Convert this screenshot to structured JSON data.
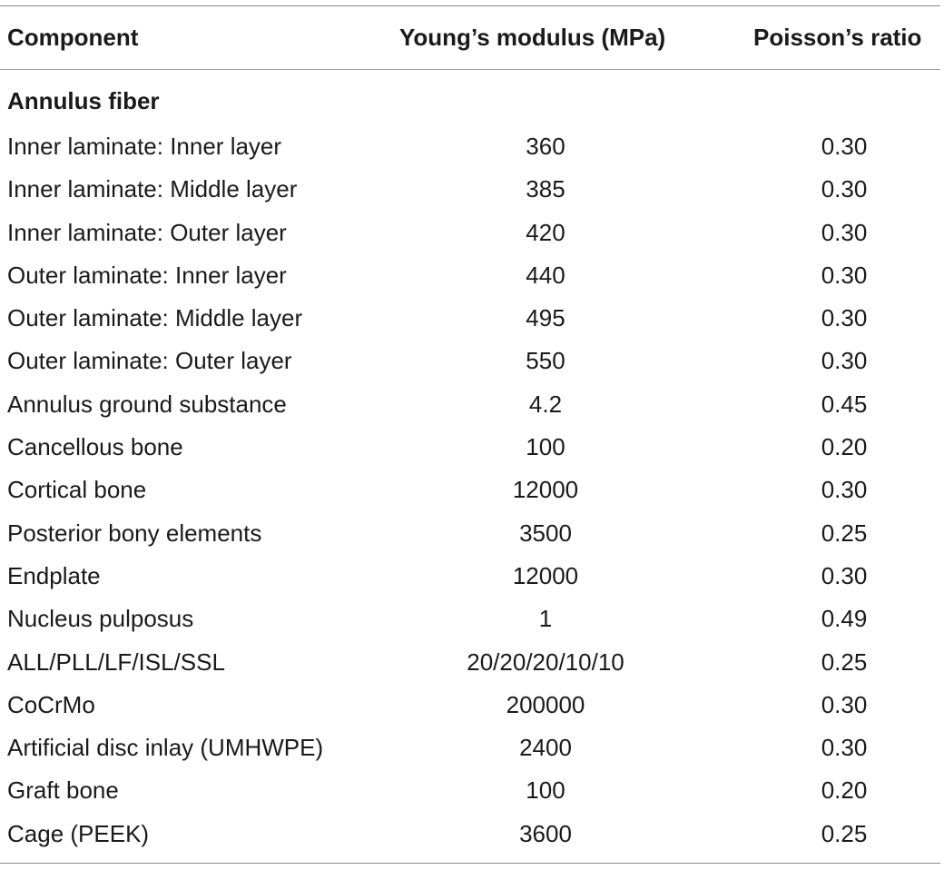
{
  "header": {
    "component": "Component",
    "youngs_modulus": "Young’s modulus (MPa)",
    "poissons_ratio": "Poisson’s ratio"
  },
  "section": {
    "title": "Annulus fiber"
  },
  "rows": [
    {
      "component": "Inner laminate: Inner layer",
      "youngs_modulus": "360",
      "poissons_ratio": "0.30"
    },
    {
      "component": "Inner laminate: Middle layer",
      "youngs_modulus": "385",
      "poissons_ratio": "0.30"
    },
    {
      "component": "Inner laminate: Outer layer",
      "youngs_modulus": "420",
      "poissons_ratio": "0.30"
    },
    {
      "component": "Outer laminate: Inner layer",
      "youngs_modulus": "440",
      "poissons_ratio": "0.30"
    },
    {
      "component": "Outer laminate: Middle layer",
      "youngs_modulus": "495",
      "poissons_ratio": "0.30"
    },
    {
      "component": "Outer laminate: Outer layer",
      "youngs_modulus": "550",
      "poissons_ratio": "0.30"
    },
    {
      "component": "Annulus ground substance",
      "youngs_modulus": "4.2",
      "poissons_ratio": "0.45"
    },
    {
      "component": "Cancellous bone",
      "youngs_modulus": "100",
      "poissons_ratio": "0.20"
    },
    {
      "component": "Cortical bone",
      "youngs_modulus": "12000",
      "poissons_ratio": "0.30"
    },
    {
      "component": "Posterior bony elements",
      "youngs_modulus": "3500",
      "poissons_ratio": "0.25"
    },
    {
      "component": "Endplate",
      "youngs_modulus": "12000",
      "poissons_ratio": "0.30"
    },
    {
      "component": "Nucleus pulposus",
      "youngs_modulus": "1",
      "poissons_ratio": "0.49"
    },
    {
      "component": "ALL/PLL/LF/ISL/SSL",
      "youngs_modulus": "20/20/20/10/10",
      "poissons_ratio": "0.25"
    },
    {
      "component": "CoCrMo",
      "youngs_modulus": "200000",
      "poissons_ratio": "0.30"
    },
    {
      "component": "Artificial disc inlay (UMHWPE)",
      "youngs_modulus": "2400",
      "poissons_ratio": "0.30"
    },
    {
      "component": "Graft bone",
      "youngs_modulus": "100",
      "poissons_ratio": "0.20"
    },
    {
      "component": "Cage (PEEK)",
      "youngs_modulus": "3600",
      "poissons_ratio": "0.25"
    }
  ]
}
